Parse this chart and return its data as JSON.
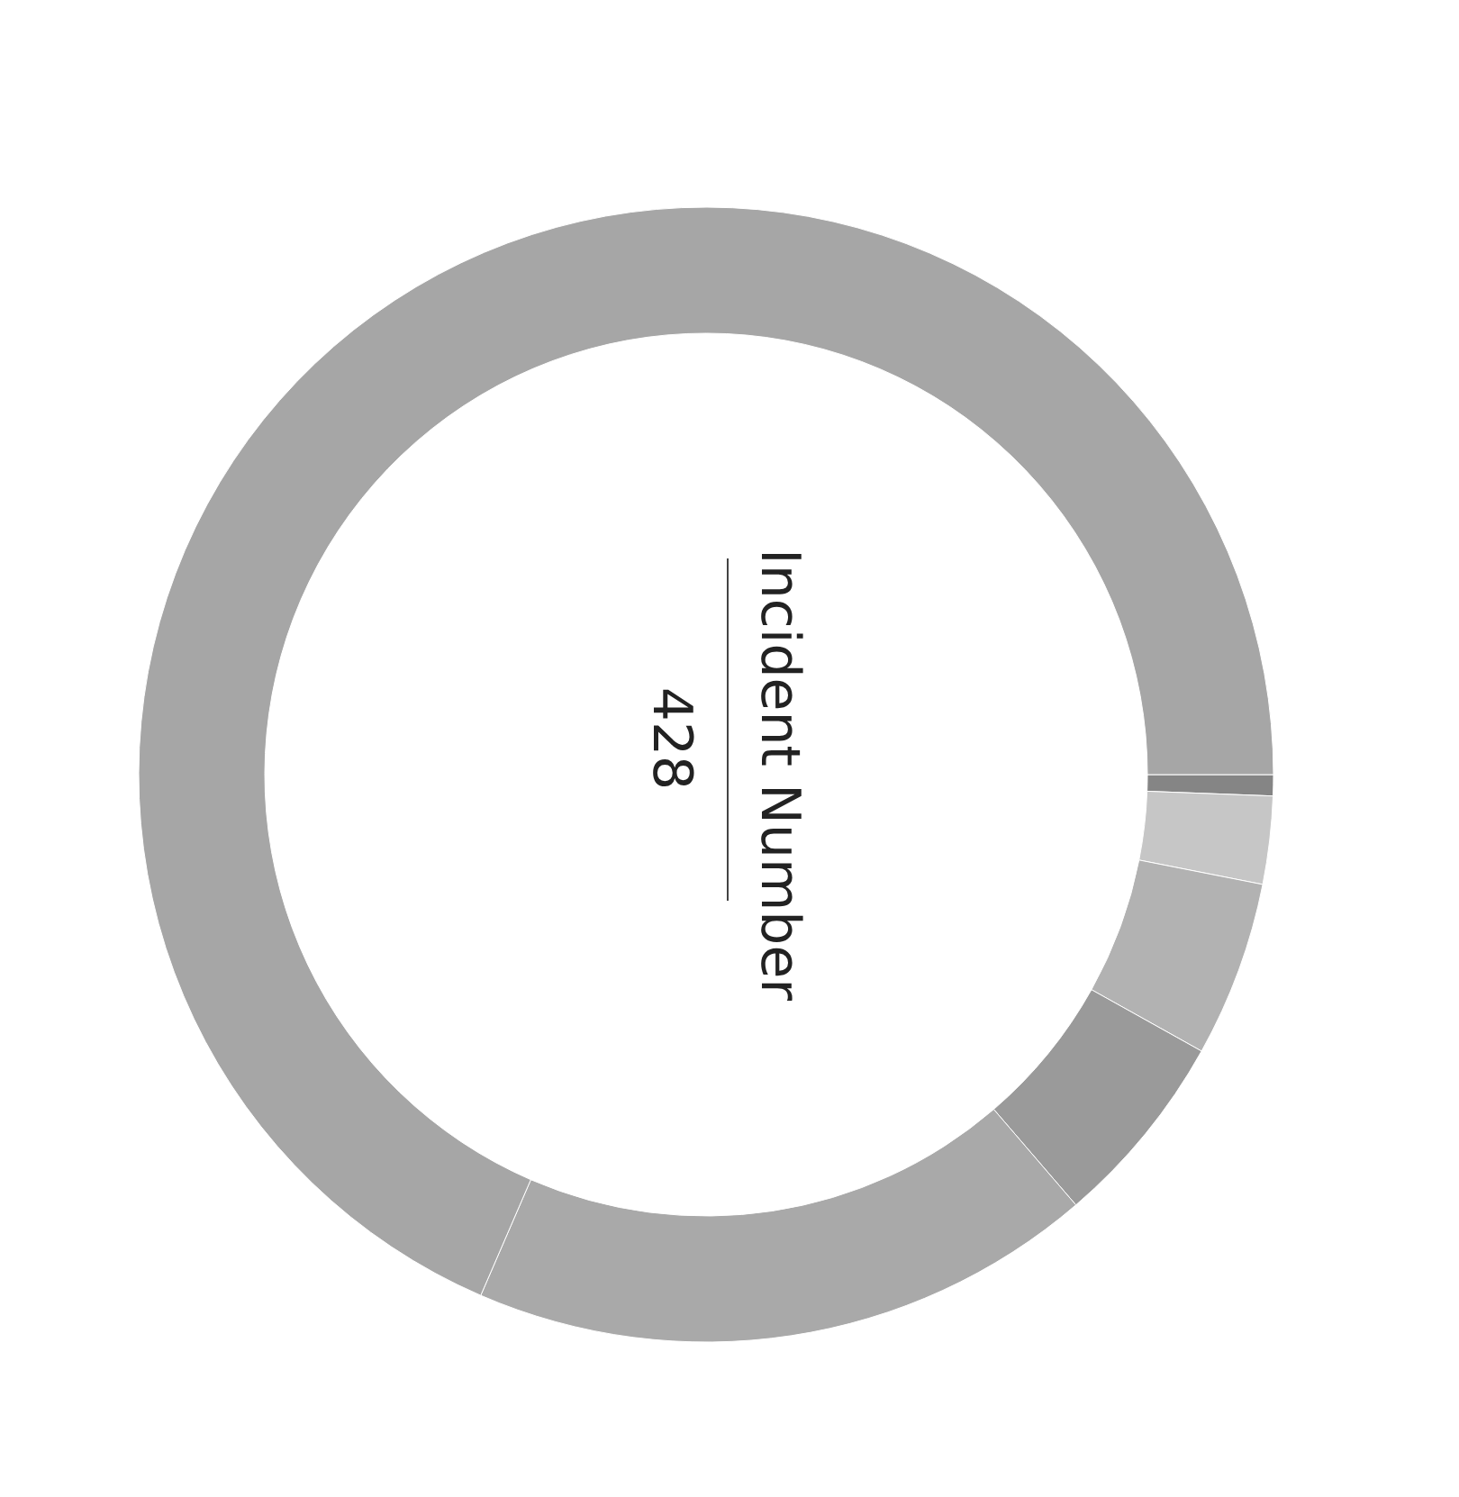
{
  "chart_data": {
    "type": "donut",
    "title": "Incident Number",
    "annotations": [
      "428"
    ],
    "categories": [
      null,
      null,
      null,
      null,
      null,
      null
    ],
    "values": [
      0.6,
      2.5,
      5,
      5.6,
      17.8,
      68.5
    ],
    "colors": [
      "#858585",
      "#c6c6c6",
      "#b2b2b2",
      "#9a9a9a",
      "#a9a9a9",
      "#a6a6a6"
    ]
  }
}
